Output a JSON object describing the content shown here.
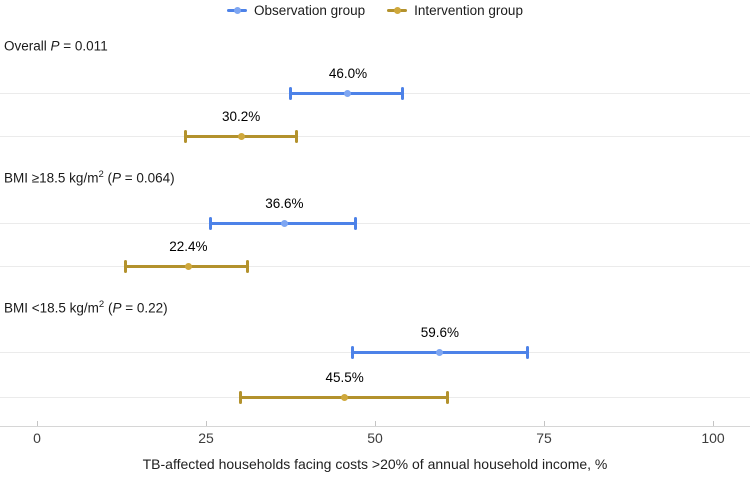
{
  "legend": {
    "items": [
      {
        "label": "Observation group"
      },
      {
        "label": "Intervention group"
      }
    ]
  },
  "group_labels": [
    {
      "pre": "Overall ",
      "sup": "",
      "mid": "",
      "p": "P",
      "post": " = 0.011"
    },
    {
      "pre": "BMI ≥18.5 kg/m",
      "sup": "2",
      "mid": " (",
      "p": "P",
      "post": " = 0.064)"
    },
    {
      "pre": "BMI <18.5 kg/m",
      "sup": "2",
      "mid": " (",
      "p": "P",
      "post": " = 0.22)"
    }
  ],
  "colors": {
    "observation": "#4d82e8",
    "observation_dot": "#7ea6f2",
    "intervention": "#b3922d",
    "intervention_dot": "#cfa83c",
    "gridline": "#ebebeb",
    "axis_line": "#d6d6d6"
  },
  "chart_data": {
    "type": "forest",
    "categories": [
      "Overall P = 0.011",
      "BMI ≥18.5 kg/m2 (P = 0.064)",
      "BMI <18.5 kg/m2 (P = 0.22)"
    ],
    "series": [
      {
        "name": "Observation group",
        "color": "#4d82e8",
        "values": [
          46.0,
          36.6,
          59.6
        ],
        "ci_low": [
          37.4,
          25.6,
          46.6
        ],
        "ci_high": [
          54.1,
          47.2,
          72.6
        ],
        "labels": [
          "46.0%",
          "36.6%",
          "59.6%"
        ]
      },
      {
        "name": "Intervention group",
        "color": "#b3922d",
        "values": [
          30.2,
          22.4,
          45.5
        ],
        "ci_low": [
          21.9,
          13.0,
          30.0
        ],
        "ci_high": [
          38.5,
          31.2,
          60.8
        ],
        "labels": [
          "30.2%",
          "22.4%",
          "45.5%"
        ]
      }
    ],
    "xlabel": "TB-affected households facing costs >20% of annual household income, %",
    "xticks": [
      "0",
      "25",
      "50",
      "75",
      "100"
    ],
    "xlim": [
      0,
      100
    ],
    "legend_position": "top"
  }
}
